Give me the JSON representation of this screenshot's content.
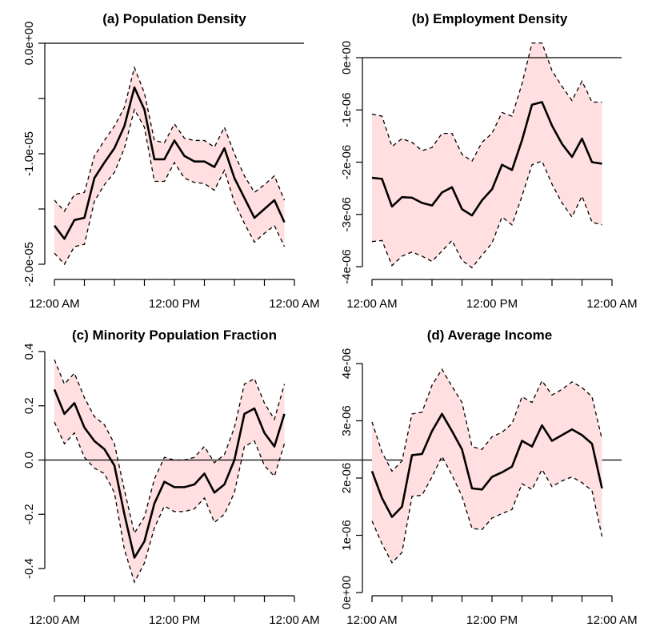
{
  "figure": {
    "x_ticks": [
      0,
      12,
      24
    ],
    "x_tick_labels": [
      "12:00 AM",
      "12:00 PM",
      "12:00 AM"
    ]
  },
  "chart_data": [
    {
      "id": "a",
      "type": "line",
      "title": "(a) Population Density",
      "xlabel": "",
      "ylabel": "",
      "xlim": [
        0,
        24
      ],
      "ylim": [
        -2e-05,
        0
      ],
      "y_ticks": [
        -2e-05,
        -1e-05,
        0
      ],
      "y_tick_labels": [
        "-2.0e-05",
        "-1.0e-05",
        "0.0e+00"
      ],
      "y_tick_minor": [
        -1.5e-05,
        -5e-06
      ],
      "zero_line": true,
      "x": [
        0,
        1,
        2,
        3,
        4,
        5,
        6,
        7,
        8,
        9,
        10,
        11,
        12,
        13,
        14,
        15,
        16,
        17,
        18,
        19,
        20,
        21,
        22,
        23
      ],
      "estimate": [
        -1.65e-05,
        -1.77e-05,
        -1.6e-05,
        -1.58e-05,
        -1.22e-05,
        -1.08e-05,
        -9.5e-06,
        -7.5e-06,
        -4e-06,
        -6e-06,
        -1.05e-05,
        -1.05e-05,
        -8.8e-06,
        -1.02e-05,
        -1.07e-05,
        -1.07e-05,
        -1.12e-05,
        -9.5e-06,
        -1.22e-05,
        -1.4e-05,
        -1.58e-05,
        -1.5e-05,
        -1.42e-05,
        -1.62e-05
      ],
      "upper": [
        -1.42e-05,
        -1.52e-05,
        -1.37e-05,
        -1.35e-05,
        -1.02e-05,
        -8.8e-06,
        -7.5e-06,
        -5.8e-06,
        -2.2e-06,
        -4.5e-06,
        -8.8e-06,
        -9e-06,
        -7.3e-06,
        -8.6e-06,
        -8.8e-06,
        -8.8e-06,
        -9.4e-06,
        -7.6e-06,
        -1e-05,
        -1.2e-05,
        -1.35e-05,
        -1.28e-05,
        -1.2e-05,
        -1.42e-05
      ],
      "lower": [
        -1.9e-05,
        -2e-05,
        -1.84e-05,
        -1.82e-05,
        -1.43e-05,
        -1.28e-05,
        -1.17e-05,
        -9.5e-06,
        -6e-06,
        -7.6e-06,
        -1.25e-05,
        -1.25e-05,
        -1.08e-05,
        -1.22e-05,
        -1.26e-05,
        -1.27e-05,
        -1.33e-05,
        -1.15e-05,
        -1.44e-05,
        -1.63e-05,
        -1.8e-05,
        -1.72e-05,
        -1.65e-05,
        -1.84e-05
      ]
    },
    {
      "id": "b",
      "type": "line",
      "title": "(b) Employment Density",
      "xlabel": "",
      "ylabel": "",
      "xlim": [
        0,
        24
      ],
      "ylim": [
        -4e-06,
        0
      ],
      "y_ticks": [
        -4e-06,
        -3e-06,
        -2e-06,
        -1e-06,
        0
      ],
      "y_tick_labels": [
        "-4e-06",
        "-3e-06",
        "-2e-06",
        "-1e-06",
        "0e+00"
      ],
      "y_tick_minor": [],
      "zero_line": true,
      "x": [
        0,
        1,
        2,
        3,
        4,
        5,
        6,
        7,
        8,
        9,
        10,
        11,
        12,
        13,
        14,
        15,
        16,
        17,
        18,
        19,
        20,
        21,
        22,
        23
      ],
      "estimate": [
        -2.3e-06,
        -2.32e-06,
        -2.85e-06,
        -2.67e-06,
        -2.68e-06,
        -2.78e-06,
        -2.83e-06,
        -2.58e-06,
        -2.48e-06,
        -2.9e-06,
        -3.02e-06,
        -2.73e-06,
        -2.52e-06,
        -2.05e-06,
        -2.15e-06,
        -1.58e-06,
        -9e-07,
        -8.5e-07,
        -1.3e-06,
        -1.65e-06,
        -1.9e-06,
        -1.55e-06,
        -2e-06,
        -2.03e-06
      ],
      "upper": [
        -1.08e-06,
        -1.12e-06,
        -1.7e-06,
        -1.55e-06,
        -1.62e-06,
        -1.78e-06,
        -1.72e-06,
        -1.45e-06,
        -1.45e-06,
        -1.85e-06,
        -1.98e-06,
        -1.62e-06,
        -1.45e-06,
        -1.05e-06,
        -1.12e-06,
        -5e-07,
        2.8e-07,
        2.8e-07,
        -2.5e-07,
        -5.5e-07,
        -8.2e-07,
        -4.5e-07,
        -8.5e-07,
        -8.5e-07
      ],
      "lower": [
        -3.52e-06,
        -3.5e-06,
        -3.98e-06,
        -3.8e-06,
        -3.72e-06,
        -3.8e-06,
        -3.9e-06,
        -3.7e-06,
        -3.5e-06,
        -3.88e-06,
        -4.02e-06,
        -3.78e-06,
        -3.55e-06,
        -3.05e-06,
        -3.2e-06,
        -2.65e-06,
        -2.05e-06,
        -1.98e-06,
        -2.42e-06,
        -2.78e-06,
        -3.05e-06,
        -2.65e-06,
        -3.15e-06,
        -3.2e-06
      ]
    },
    {
      "id": "c",
      "type": "line",
      "title": "(c) Minority Population Fraction",
      "xlabel": "",
      "ylabel": "",
      "xlim": [
        0,
        24
      ],
      "ylim": [
        -0.4,
        0.4
      ],
      "y_ticks": [
        -0.4,
        -0.2,
        0.0,
        0.2,
        0.4
      ],
      "y_tick_labels": [
        "-0.4",
        "-0.2",
        "0.0",
        "0.2",
        "0.4"
      ],
      "y_tick_minor": [],
      "zero_line": true,
      "x": [
        0,
        1,
        2,
        3,
        4,
        5,
        6,
        7,
        8,
        9,
        10,
        11,
        12,
        13,
        14,
        15,
        16,
        17,
        18,
        19,
        20,
        21,
        22,
        23
      ],
      "estimate": [
        0.26,
        0.17,
        0.21,
        0.12,
        0.07,
        0.04,
        -0.02,
        -0.2,
        -0.36,
        -0.3,
        -0.16,
        -0.08,
        -0.1,
        -0.1,
        -0.09,
        -0.05,
        -0.12,
        -0.09,
        0.0,
        0.17,
        0.19,
        0.1,
        0.05,
        0.17
      ],
      "upper": [
        0.37,
        0.28,
        0.32,
        0.23,
        0.16,
        0.13,
        0.06,
        -0.11,
        -0.27,
        -0.21,
        -0.07,
        0.01,
        0.0,
        0.0,
        0.01,
        0.05,
        -0.01,
        0.02,
        0.12,
        0.28,
        0.3,
        0.21,
        0.15,
        0.28
      ],
      "lower": [
        0.14,
        0.06,
        0.1,
        0.01,
        -0.03,
        -0.05,
        -0.12,
        -0.33,
        -0.45,
        -0.38,
        -0.25,
        -0.17,
        -0.19,
        -0.19,
        -0.18,
        -0.14,
        -0.23,
        -0.2,
        -0.12,
        0.05,
        0.07,
        -0.02,
        -0.06,
        0.06
      ]
    },
    {
      "id": "d",
      "type": "line",
      "title": "(d) Average Income",
      "xlabel": "",
      "ylabel": "",
      "xlim": [
        0,
        24
      ],
      "ylim": [
        0,
        4e-06
      ],
      "y_ticks": [
        0,
        1e-06,
        2e-06,
        3e-06,
        4e-06
      ],
      "y_tick_labels": [
        "0e+00",
        "1e-06",
        "2e-06",
        "3e-06",
        "4e-06"
      ],
      "y_tick_minor": [],
      "zero_line": false,
      "x": [
        0,
        1,
        2,
        3,
        4,
        5,
        6,
        7,
        8,
        9,
        10,
        11,
        12,
        13,
        14,
        15,
        16,
        17,
        18,
        19,
        20,
        21,
        22,
        23
      ],
      "estimate": [
        2.12e-06,
        1.65e-06,
        1.32e-06,
        1.5e-06,
        2.4e-06,
        2.42e-06,
        2.82e-06,
        3.12e-06,
        2.82e-06,
        2.5e-06,
        1.82e-06,
        1.8e-06,
        2.02e-06,
        2.1e-06,
        2.2e-06,
        2.65e-06,
        2.55e-06,
        2.92e-06,
        2.65e-06,
        2.75e-06,
        2.85e-06,
        2.75e-06,
        2.6e-06,
        1.82e-06
      ],
      "upper": [
        2.98e-06,
        2.45e-06,
        2.12e-06,
        2.3e-06,
        3.12e-06,
        3.15e-06,
        3.62e-06,
        3.9e-06,
        3.6e-06,
        3.32e-06,
        2.55e-06,
        2.5e-06,
        2.72e-06,
        2.8e-06,
        2.95e-06,
        3.42e-06,
        3.32e-06,
        3.7e-06,
        3.45e-06,
        3.55e-06,
        3.68e-06,
        3.58e-06,
        3.42e-06,
        2.68e-06
      ],
      "lower": [
        1.25e-06,
        8.5e-07,
        5.2e-07,
        7e-07,
        1.68e-06,
        1.7e-06,
        2.02e-06,
        2.38e-06,
        2.05e-06,
        1.68e-06,
        1.12e-06,
        1.1e-06,
        1.3e-06,
        1.38e-06,
        1.45e-06,
        1.9e-06,
        1.8e-06,
        2.15e-06,
        1.85e-06,
        1.95e-06,
        2.02e-06,
        1.92e-06,
        1.78e-06,
        9.8e-07
      ]
    }
  ]
}
